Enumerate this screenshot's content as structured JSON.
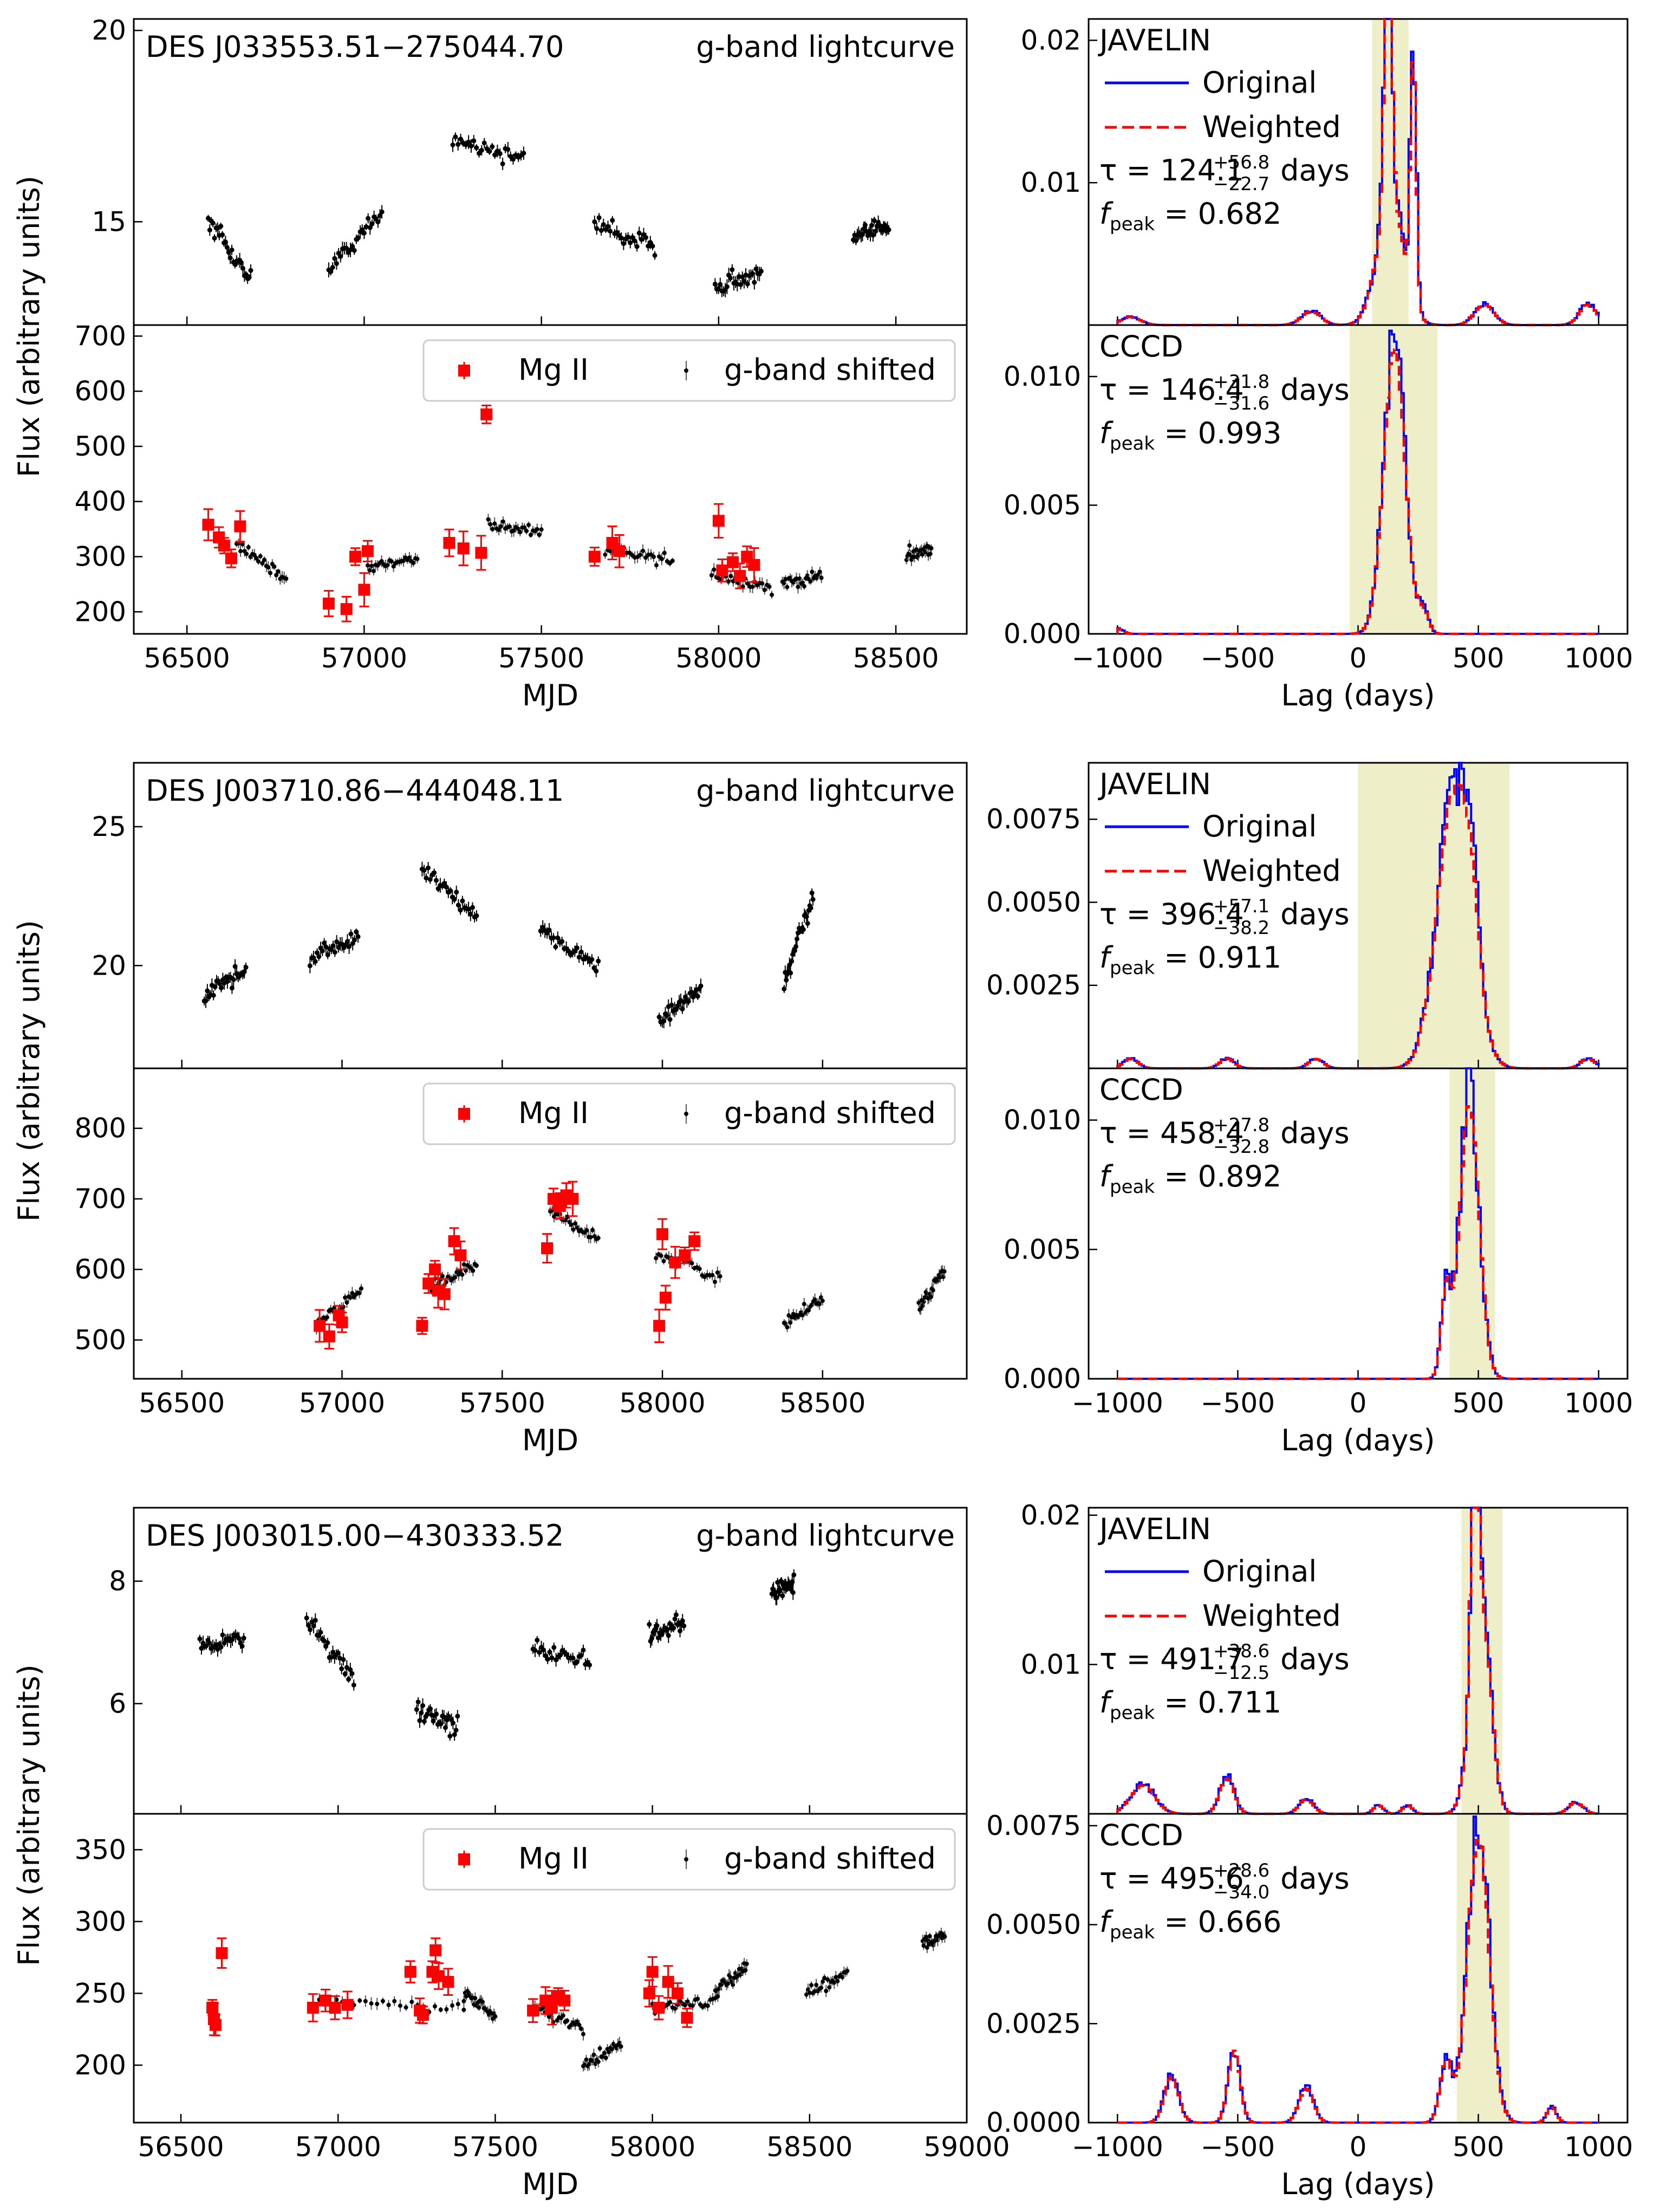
{
  "colors": {
    "gband": "#000000",
    "mg2": "#ff0000",
    "original": "#0000ff",
    "weighted": "#ff0000",
    "shade": "#eeeec9"
  },
  "common": {
    "ylabel": "Flux (arbitrary units)",
    "xlabel_lc": "MJD",
    "xlabel_lag": "Lag (days)",
    "gband_label": "g-band lightcurve",
    "legend_mg2": "Mg II",
    "legend_gshift": "g-band shifted",
    "legend_original": "Original",
    "legend_weighted": "Weighted",
    "javelin_label": "JAVELIN",
    "cccd_label": "CCCD",
    "tau_prefix": "τ = ",
    "days_suffix": " days",
    "fpeak_prefix": "f",
    "fpeak_sub": "peak",
    "fpeak_eq": " = "
  },
  "chart_data": [
    {
      "type": "scatter",
      "name": "DES J033553.51−275044.70",
      "xlim": [
        56350,
        58700
      ],
      "x_ticks": [
        "56500",
        "57000",
        "57500",
        "58000",
        "58500"
      ],
      "top": {
        "ylim": [
          12.3,
          20.3
        ],
        "y_ticks": [
          "15",
          "20"
        ],
        "seasons": [
          [
            56560,
            56680,
            15.0,
            13.5
          ],
          [
            56900,
            57050,
            13.8,
            15.2
          ],
          [
            57250,
            57450,
            17.2,
            16.6
          ],
          [
            57650,
            57820,
            15.0,
            14.3
          ],
          [
            57990,
            58120,
            13.4,
            13.6
          ],
          [
            58380,
            58480,
            14.5,
            15.0
          ]
        ]
      },
      "bottom": {
        "ylim": [
          160,
          720
        ],
        "y_ticks": [
          "200",
          "300",
          "400",
          "500",
          "600",
          "700"
        ],
        "seasons": [
          [
            56640,
            56780,
            325,
            258
          ],
          [
            57010,
            57150,
            280,
            300
          ],
          [
            57350,
            57500,
            360,
            345
          ],
          [
            57680,
            57870,
            315,
            290
          ],
          [
            57980,
            58150,
            270,
            240
          ],
          [
            58180,
            58290,
            250,
            265
          ],
          [
            58530,
            58600,
            305,
            315
          ]
        ],
        "mg2_x": [
          56560,
          56590,
          56605,
          56625,
          56650,
          56900,
          56950,
          56975,
          57000,
          57010,
          57240,
          57280,
          57330,
          57345,
          57650,
          57700,
          57720,
          58000,
          58010,
          58040,
          58060,
          58080,
          58100
        ],
        "mg2_y": [
          358,
          335,
          320,
          297,
          355,
          215,
          205,
          300,
          240,
          310,
          325,
          315,
          307,
          558,
          300,
          325,
          310,
          365,
          275,
          290,
          265,
          300,
          285
        ]
      },
      "jav": {
        "label": "JAVELIN",
        "ylim": [
          0,
          0.0215
        ],
        "y_ticks": [
          "0.01",
          "0.02"
        ],
        "tick_vals": [
          0.01,
          0.02
        ],
        "tau": "124.1",
        "tau_up": "+56.8",
        "tau_lo": "−22.7",
        "fpeak": "0.682",
        "peaks": [
          [
            120,
            0.0205,
            15
          ],
          [
            225,
            0.0185,
            12
          ],
          [
            130,
            0.0092,
            55
          ],
          [
            -950,
            0.0006,
            40
          ],
          [
            -200,
            0.001,
            40
          ],
          [
            520,
            0.0015,
            40
          ],
          [
            950,
            0.0015,
            35
          ]
        ],
        "shade": [
          58,
          210
        ]
      },
      "cccd": {
        "label": "CCCD",
        "ylim": [
          0,
          0.012
        ],
        "y_ticks": [
          "0.000",
          "0.005",
          "0.010"
        ],
        "tick_vals": [
          0.0,
          0.005,
          0.01
        ],
        "tau": "146.4",
        "tau_up": "+31.8",
        "tau_lo": "−31.6",
        "fpeak": "0.993",
        "peaks": [
          [
            146,
            0.0115,
            45
          ],
          [
            270,
            0.0008,
            20
          ],
          [
            -1000,
            0.0002,
            20
          ]
        ],
        "shade": [
          -35,
          330
        ]
      }
    },
    {
      "type": "scatter",
      "name": "DES J003710.86−444048.11",
      "xlim": [
        56350,
        58950
      ],
      "x_ticks": [
        "56500",
        "57000",
        "57500",
        "58000",
        "58500"
      ],
      "top": {
        "ylim": [
          16.3,
          27.3
        ],
        "y_ticks": [
          "20",
          "25"
        ],
        "seasons": [
          [
            56570,
            56700,
            19.0,
            19.8
          ],
          [
            56900,
            57050,
            20.3,
            21.0
          ],
          [
            57250,
            57420,
            23.5,
            21.8
          ],
          [
            57620,
            57800,
            21.2,
            20.0
          ],
          [
            57990,
            58120,
            18.0,
            19.2
          ],
          [
            58380,
            58470,
            19.3,
            22.5
          ]
        ]
      },
      "bottom": {
        "ylim": [
          445,
          885
        ],
        "y_ticks": [
          "500",
          "600",
          "700",
          "800"
        ],
        "seasons": [
          [
            56920,
            57060,
            525,
            570
          ],
          [
            57280,
            57420,
            575,
            605
          ],
          [
            57650,
            57800,
            680,
            645
          ],
          [
            57980,
            58180,
            620,
            590
          ],
          [
            58380,
            58500,
            520,
            560
          ],
          [
            58800,
            58880,
            545,
            600
          ]
        ],
        "mg2_x": [
          56930,
          56960,
          56990,
          57000,
          57250,
          57270,
          57290,
          57300,
          57320,
          57350,
          57370,
          57640,
          57660,
          57680,
          57700,
          57720,
          57990,
          58000,
          58010,
          58040,
          58070,
          58100
        ],
        "mg2_y": [
          520,
          505,
          535,
          525,
          520,
          580,
          600,
          570,
          565,
          640,
          620,
          630,
          700,
          690,
          705,
          700,
          520,
          650,
          560,
          610,
          620,
          640
        ]
      },
      "jav": {
        "label": "JAVELIN",
        "ylim": [
          0,
          0.0092
        ],
        "y_ticks": [
          "0.0025",
          "0.0050",
          "0.0075"
        ],
        "tick_vals": [
          0.0025,
          0.005,
          0.0075
        ],
        "tau": "396.4",
        "tau_up": "+57.1",
        "tau_lo": "−38.2",
        "fpeak": "0.911",
        "peaks": [
          [
            396,
            0.0088,
            70
          ],
          [
            470,
            0.0018,
            30
          ],
          [
            -950,
            0.0003,
            30
          ],
          [
            -550,
            0.0003,
            30
          ],
          [
            -180,
            0.0003,
            30
          ],
          [
            950,
            0.0003,
            30
          ]
        ],
        "shade": [
          0,
          630
        ]
      },
      "cccd": {
        "label": "CCCD",
        "ylim": [
          0,
          0.012
        ],
        "y_ticks": [
          "0.000",
          "0.005",
          "0.010"
        ],
        "tick_vals": [
          0.0,
          0.005,
          0.01
        ],
        "tau": "458.4",
        "tau_up": "+27.8",
        "tau_lo": "−32.8",
        "fpeak": "0.892",
        "peaks": [
          [
            458,
            0.0112,
            40
          ],
          [
            360,
            0.0035,
            20
          ]
        ],
        "shade": [
          380,
          570
        ]
      }
    },
    {
      "type": "scatter",
      "name": "DES J003015.00−430333.52",
      "xlim": [
        56350,
        59000
      ],
      "x_ticks": [
        "56500",
        "57000",
        "57500",
        "58000",
        "58500",
        "59000"
      ],
      "top": {
        "ylim": [
          4.2,
          9.2
        ],
        "y_ticks": [
          "6",
          "8"
        ],
        "seasons": [
          [
            56560,
            56700,
            6.9,
            7.1
          ],
          [
            56900,
            57050,
            7.4,
            6.4
          ],
          [
            57250,
            57380,
            5.9,
            5.6
          ],
          [
            57620,
            57800,
            6.9,
            6.7
          ],
          [
            57990,
            58100,
            7.1,
            7.3
          ],
          [
            58380,
            58450,
            7.8,
            8.0
          ]
        ]
      },
      "bottom": {
        "ylim": [
          160,
          375
        ],
        "y_ticks": [
          "200",
          "250",
          "300",
          "350"
        ],
        "seasons": [
          [
            56940,
            57400,
            245,
            240
          ],
          [
            57400,
            57500,
            250,
            235
          ],
          [
            57620,
            57780,
            240,
            225
          ],
          [
            57780,
            57900,
            200,
            215
          ],
          [
            58000,
            58200,
            240,
            245
          ],
          [
            58200,
            58300,
            250,
            270
          ],
          [
            58490,
            58620,
            250,
            265
          ],
          [
            58860,
            58930,
            285,
            290
          ]
        ],
        "mg2_x": [
          56600,
          56605,
          56610,
          56630,
          56920,
          56960,
          56990,
          57030,
          57230,
          57260,
          57270,
          57300,
          57310,
          57320,
          57350,
          57620,
          57660,
          57680,
          57700,
          57720,
          57990,
          58000,
          58020,
          58050,
          58080,
          58110
        ],
        "mg2_y": [
          240,
          232,
          228,
          278,
          240,
          245,
          240,
          242,
          265,
          238,
          235,
          265,
          280,
          262,
          258,
          238,
          245,
          240,
          248,
          245,
          250,
          265,
          240,
          258,
          250,
          233
        ]
      },
      "jav": {
        "label": "JAVELIN",
        "ylim": [
          0,
          0.0205
        ],
        "y_ticks": [
          "0.01",
          "0.02"
        ],
        "tick_vals": [
          0.01,
          0.02
        ],
        "tau": "491.7",
        "tau_up": "+38.6",
        "tau_lo": "−12.5",
        "fpeak": "0.711",
        "peaks": [
          [
            480,
            0.0185,
            15
          ],
          [
            495,
            0.0105,
            40
          ],
          [
            530,
            0.005,
            30
          ],
          [
            -900,
            0.002,
            50
          ],
          [
            -550,
            0.0025,
            30
          ],
          [
            -220,
            0.001,
            30
          ],
          [
            80,
            0.0006,
            20
          ],
          [
            200,
            0.0006,
            20
          ],
          [
            900,
            0.0008,
            30
          ]
        ],
        "shade": [
          430,
          600
        ]
      },
      "cccd": {
        "label": "CCCD",
        "ylim": [
          0,
          0.0078
        ],
        "y_ticks": [
          "0.0000",
          "0.0025",
          "0.0050",
          "0.0075"
        ],
        "tick_vals": [
          0.0,
          0.0025,
          0.005,
          0.0075
        ],
        "tau": "495.6",
        "tau_up": "+28.6",
        "tau_lo": "−34.0",
        "fpeak": "0.666",
        "peaks": [
          [
            495,
            0.0076,
            45
          ],
          [
            -520,
            0.0019,
            25
          ],
          [
            -780,
            0.0012,
            30
          ],
          [
            -220,
            0.0009,
            30
          ],
          [
            360,
            0.0016,
            25
          ],
          [
            800,
            0.0004,
            20
          ]
        ],
        "shade": [
          410,
          630
        ]
      }
    }
  ]
}
